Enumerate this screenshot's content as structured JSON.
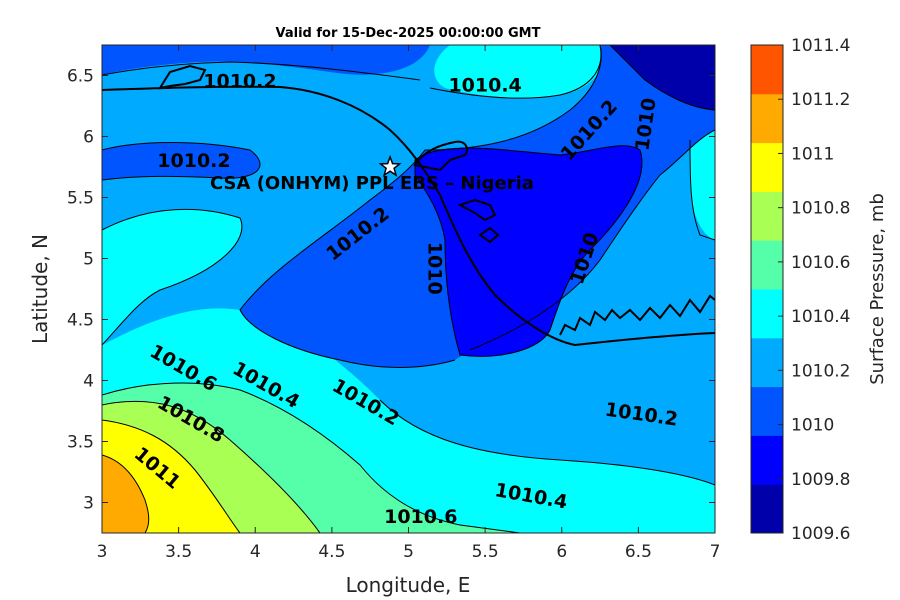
{
  "chart_data": {
    "type": "contourf",
    "title": "Valid for 15-Dec-2025 00:00:00 GMT",
    "xlabel": "Longitude, E",
    "ylabel": "Latitude, N",
    "xlim": [
      3,
      7
    ],
    "ylim": [
      2.75,
      6.75
    ],
    "x_ticks": [
      "3",
      "3.5",
      "4",
      "4.5",
      "5",
      "5.5",
      "6",
      "6.5",
      "7"
    ],
    "y_ticks": [
      "3",
      "3.5",
      "4",
      "4.5",
      "5",
      "5.5",
      "6",
      "6.5"
    ],
    "colorbar": {
      "label": "Surface Pressure, mb",
      "range": [
        1009.6,
        1011.4
      ],
      "ticks": [
        "1009.6",
        "1009.8",
        "1010",
        "1010.2",
        "1010.4",
        "1010.6",
        "1010.8",
        "1011",
        "1011.2",
        "1011.4"
      ],
      "colors": [
        "#0000aa",
        "#0000ff",
        "#0055ff",
        "#00aaff",
        "#00ffff",
        "#55ffaa",
        "#aaff55",
        "#ffff00",
        "#ffaa00",
        "#ff5500"
      ]
    },
    "contour_labels": [
      {
        "text": "1010.2",
        "lon": 3.9,
        "lat": 6.45,
        "angle": 0
      },
      {
        "text": "1010.4",
        "lon": 5.5,
        "lat": 6.42,
        "angle": 0
      },
      {
        "text": "1010.2",
        "lon": 6.18,
        "lat": 6.05,
        "angle": -48
      },
      {
        "text": "1010",
        "lon": 6.55,
        "lat": 6.1,
        "angle": -82
      },
      {
        "text": "1010.2",
        "lon": 3.6,
        "lat": 5.8,
        "angle": 0
      },
      {
        "text": "1010.2",
        "lon": 4.67,
        "lat": 5.2,
        "angle": -38
      },
      {
        "text": "1010",
        "lon": 5.17,
        "lat": 4.92,
        "angle": 90
      },
      {
        "text": "1010",
        "lon": 6.15,
        "lat": 5.0,
        "angle": -72
      },
      {
        "text": "1010.6",
        "lon": 3.53,
        "lat": 4.1,
        "angle": 30
      },
      {
        "text": "1010.4",
        "lon": 4.07,
        "lat": 3.96,
        "angle": 30
      },
      {
        "text": "1010.2",
        "lon": 4.72,
        "lat": 3.82,
        "angle": 30
      },
      {
        "text": "1010.2",
        "lon": 6.52,
        "lat": 3.72,
        "angle": 8
      },
      {
        "text": "1010.8",
        "lon": 3.58,
        "lat": 3.68,
        "angle": 30
      },
      {
        "text": "1011",
        "lon": 3.36,
        "lat": 3.28,
        "angle": 40
      },
      {
        "text": "1010.4",
        "lon": 5.8,
        "lat": 3.05,
        "angle": 10
      },
      {
        "text": "1010.6",
        "lon": 5.08,
        "lat": 2.88,
        "angle": 0
      }
    ],
    "site": {
      "name": "CSA (ONHYM) PPL EBS – Nigeria",
      "lon": 4.88,
      "lat": 5.75
    }
  }
}
